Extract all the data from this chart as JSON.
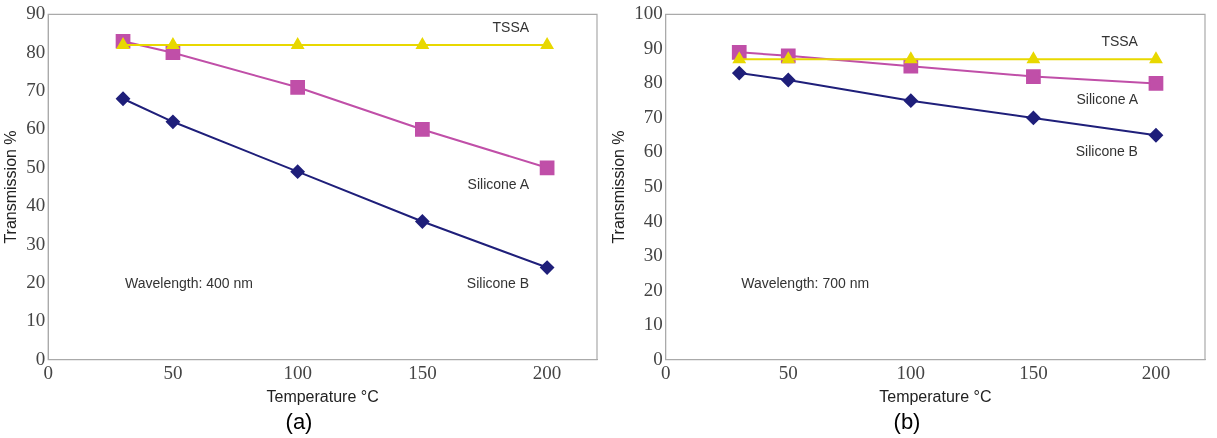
{
  "chart_data": [
    {
      "type": "line",
      "title": "(a)",
      "xlabel": "Temperature °C",
      "ylabel": "Transmission %",
      "x": [
        30,
        50,
        100,
        150,
        200
      ],
      "xlim": [
        0,
        220
      ],
      "xticks": [
        0,
        50,
        100,
        150,
        200
      ],
      "ylim": [
        0,
        90
      ],
      "yticks": [
        0,
        10,
        20,
        30,
        40,
        50,
        60,
        70,
        80,
        90
      ],
      "grid": false,
      "legend": false,
      "annotations": [
        "Wavelength: 400 nm"
      ],
      "series": [
        {
          "name": "TSSA",
          "color": "#e8d800",
          "marker": "triangle",
          "values": [
            82,
            82,
            82,
            82,
            82
          ]
        },
        {
          "name": "Silicone A",
          "color": "#c04fa8",
          "marker": "square",
          "values": [
            83,
            80,
            71,
            60,
            50
          ]
        },
        {
          "name": "Silicone B",
          "color": "#1f1f7a",
          "marker": "diamond",
          "values": [
            68,
            62,
            49,
            36,
            24
          ]
        }
      ]
    },
    {
      "type": "line",
      "title": "(b)",
      "xlabel": "Temperature °C",
      "ylabel": "Transmission %",
      "x": [
        30,
        50,
        100,
        150,
        200
      ],
      "xlim": [
        0,
        220
      ],
      "xticks": [
        0,
        50,
        100,
        150,
        200
      ],
      "ylim": [
        0,
        100
      ],
      "yticks": [
        0,
        10,
        20,
        30,
        40,
        50,
        60,
        70,
        80,
        90,
        100
      ],
      "grid": false,
      "legend": false,
      "annotations": [
        "Wavelength: 700 nm"
      ],
      "series": [
        {
          "name": "TSSA",
          "color": "#e8d800",
          "marker": "triangle",
          "values": [
            87,
            87,
            87,
            87,
            87
          ]
        },
        {
          "name": "Silicone A",
          "color": "#c04fa8",
          "marker": "square",
          "values": [
            89,
            88,
            85,
            82,
            80
          ]
        },
        {
          "name": "Silicone B",
          "color": "#1f1f7a",
          "marker": "diamond",
          "values": [
            83,
            81,
            75,
            70,
            65
          ]
        }
      ]
    }
  ]
}
